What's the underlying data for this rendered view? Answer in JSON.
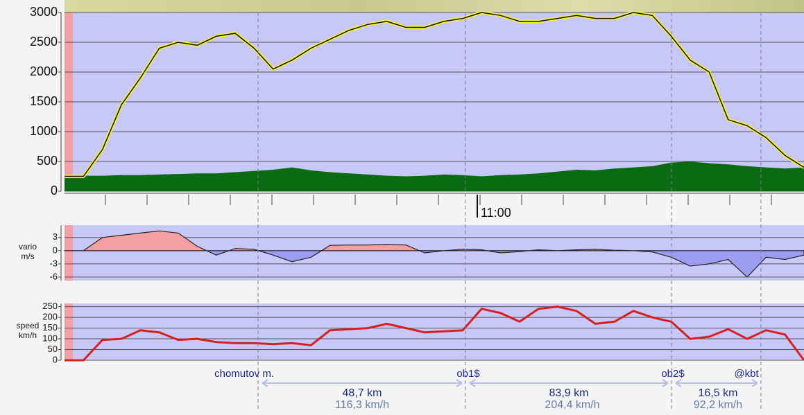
{
  "chart_data": [
    {
      "type": "line",
      "ylim": [
        0,
        3000
      ],
      "yticks": [
        0,
        500,
        1000,
        1500,
        2000,
        2500,
        3000
      ],
      "grid": true,
      "series": [
        {
          "type": "line",
          "color": "#f2ee40",
          "values": [
            250,
            250,
            700,
            1450,
            1900,
            2400,
            2500,
            2450,
            2600,
            2650,
            2400,
            2050,
            2200,
            2400,
            2550,
            2700,
            2800,
            2850,
            2750,
            2750,
            2850,
            2900,
            3000,
            2950,
            2850,
            2850,
            2900,
            2950,
            2900,
            2900,
            3000,
            2950,
            2600,
            2200,
            2000,
            1200,
            1100,
            900,
            600,
            400
          ]
        },
        {
          "type": "area",
          "color": "#0b6b12",
          "values": [
            250,
            260,
            260,
            270,
            270,
            280,
            290,
            300,
            300,
            320,
            340,
            360,
            400,
            350,
            320,
            300,
            280,
            260,
            250,
            260,
            280,
            270,
            250,
            270,
            280,
            300,
            330,
            360,
            350,
            380,
            400,
            420,
            480,
            500,
            470,
            450,
            420,
            400,
            380,
            400
          ]
        }
      ],
      "time_label": "11:00"
    },
    {
      "type": "area",
      "ylim": [
        -6.8,
        5.8
      ],
      "yticks": [
        -6,
        -3,
        0,
        3
      ],
      "grid": true,
      "ylabel": [
        "vario",
        "m/s"
      ],
      "positive_color": "#f4a0a0",
      "negative_color": "#9c9cf0",
      "values": [
        0,
        0,
        3,
        3.5,
        4,
        4.5,
        4,
        1,
        -1,
        0.5,
        0.3,
        -1,
        -2.5,
        -1.5,
        1.2,
        1.3,
        1.3,
        1.4,
        1.3,
        -0.5,
        0,
        0.3,
        0.2,
        -0.5,
        -0.2,
        0.2,
        0,
        0.2,
        0.3,
        0.1,
        0,
        -0.3,
        -1.5,
        -3.5,
        -3,
        -2,
        -6,
        -1.5,
        -2,
        -1
      ]
    },
    {
      "type": "line",
      "ylim": [
        0,
        265
      ],
      "yticks": [
        0,
        50,
        100,
        150,
        200,
        250
      ],
      "grid": true,
      "ylabel": [
        "speed",
        "km/h"
      ],
      "color": "#d81e1e",
      "values": [
        0,
        0,
        95,
        100,
        140,
        130,
        95,
        100,
        85,
        80,
        80,
        75,
        80,
        70,
        140,
        145,
        150,
        170,
        150,
        130,
        135,
        140,
        240,
        220,
        180,
        240,
        250,
        230,
        170,
        180,
        230,
        200,
        180,
        100,
        110,
        145,
        100,
        140,
        120,
        0
      ]
    }
  ],
  "waypoints": [
    "chomutov m.",
    "ob1$",
    "ob2$",
    "@kbt"
  ],
  "legs": [
    {
      "distance": "48,7 km",
      "speed": "116,3 km/h"
    },
    {
      "distance": "83,9 km",
      "speed": "204,4 km/h"
    },
    {
      "distance": "16,5 km",
      "speed": "92,2 km/h"
    }
  ]
}
